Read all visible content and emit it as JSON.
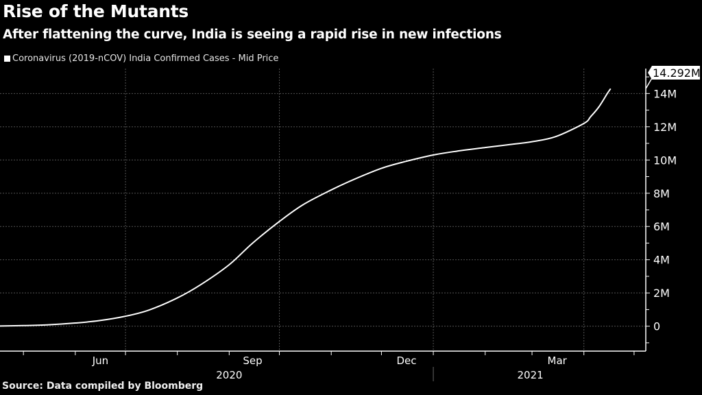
{
  "title": "Rise of the Mutants",
  "subtitle": "After flattening the curve, India is seeing a rapid rise in new infections",
  "source": "Source: Data compiled by Bloomberg",
  "colors": {
    "background": "#000000",
    "line": "#ffffff",
    "grid": "#555555"
  },
  "chart_data": {
    "type": "line",
    "title": "Rise of the Mutants",
    "xlabel": "",
    "ylabel": "",
    "series": [
      {
        "name": "Coronavirus (2019-nCOV) India Confirmed Cases - Mid Price",
        "x": [
          "2020-04-17",
          "2020-05-01",
          "2020-05-15",
          "2020-06-01",
          "2020-06-15",
          "2020-07-01",
          "2020-07-15",
          "2020-08-01",
          "2020-08-15",
          "2020-09-01",
          "2020-09-15",
          "2020-10-01",
          "2020-10-15",
          "2020-11-01",
          "2020-11-15",
          "2020-12-01",
          "2020-12-15",
          "2021-01-01",
          "2021-01-15",
          "2021-02-01",
          "2021-02-15",
          "2021-03-01",
          "2021-03-15",
          "2021-04-01",
          "2021-04-05",
          "2021-04-10",
          "2021-04-15",
          "2021-04-17"
        ],
        "values": [
          0.013,
          0.035,
          0.08,
          0.19,
          0.33,
          0.6,
          0.97,
          1.7,
          2.5,
          3.7,
          5.0,
          6.3,
          7.3,
          8.2,
          8.85,
          9.5,
          9.9,
          10.3,
          10.53,
          10.75,
          10.92,
          11.1,
          11.4,
          12.2,
          12.6,
          13.2,
          14.0,
          14.292
        ]
      }
    ],
    "last_value_label": "14.292M",
    "y_unit": "millions",
    "ylim": [
      -1.5,
      15.5
    ],
    "y_ticks": [
      0,
      2,
      4,
      6,
      8,
      10,
      12,
      14
    ],
    "y_tick_labels": [
      "0",
      "2M",
      "4M",
      "6M",
      "8M",
      "10M",
      "12M",
      "14M"
    ],
    "x_month_labels": [
      {
        "label": "Jun",
        "date": "2020-06-16"
      },
      {
        "label": "Sep",
        "date": "2020-09-15"
      },
      {
        "label": "Dec",
        "date": "2020-12-16"
      },
      {
        "label": "Mar",
        "date": "2021-03-16"
      }
    ],
    "x_year_labels": [
      {
        "label": "2020",
        "date": "2020-09-01"
      },
      {
        "label": "2021",
        "date": "2021-02-28"
      }
    ],
    "xlim": [
      "2020-04-17",
      "2021-05-08"
    ],
    "grid": true,
    "legend": "top-left"
  }
}
